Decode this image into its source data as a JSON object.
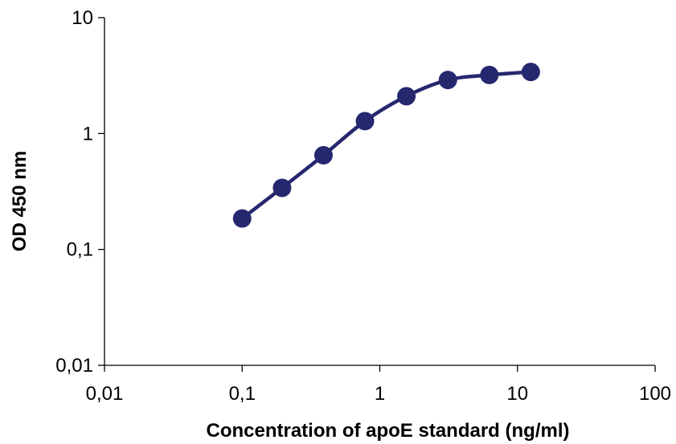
{
  "chart_data": {
    "type": "line",
    "title": "",
    "xlabel": "Concentration of apoE standard (ng/ml)",
    "ylabel": "OD 450 nm",
    "x_scale": "log",
    "y_scale": "log",
    "xlim": [
      0.01,
      100
    ],
    "ylim": [
      0.01,
      10
    ],
    "x_ticks": [
      {
        "value": 0.01,
        "label": "0,01"
      },
      {
        "value": 0.1,
        "label": "0,1"
      },
      {
        "value": 1,
        "label": "1"
      },
      {
        "value": 10,
        "label": "10"
      },
      {
        "value": 100,
        "label": "100"
      }
    ],
    "y_ticks": [
      {
        "value": 0.01,
        "label": "0,01"
      },
      {
        "value": 0.1,
        "label": "0,1"
      },
      {
        "value": 1,
        "label": "1"
      },
      {
        "value": 10,
        "label": "10"
      }
    ],
    "grid": false,
    "legend": "none",
    "series": [
      {
        "color": "#26286f",
        "marker": "circle",
        "smooth": true,
        "x": [
          0.1,
          0.195,
          0.39,
          0.78,
          1.56,
          3.125,
          6.25,
          12.5
        ],
        "y": [
          0.185,
          0.34,
          0.65,
          1.28,
          2.1,
          2.9,
          3.2,
          3.4
        ]
      }
    ]
  }
}
